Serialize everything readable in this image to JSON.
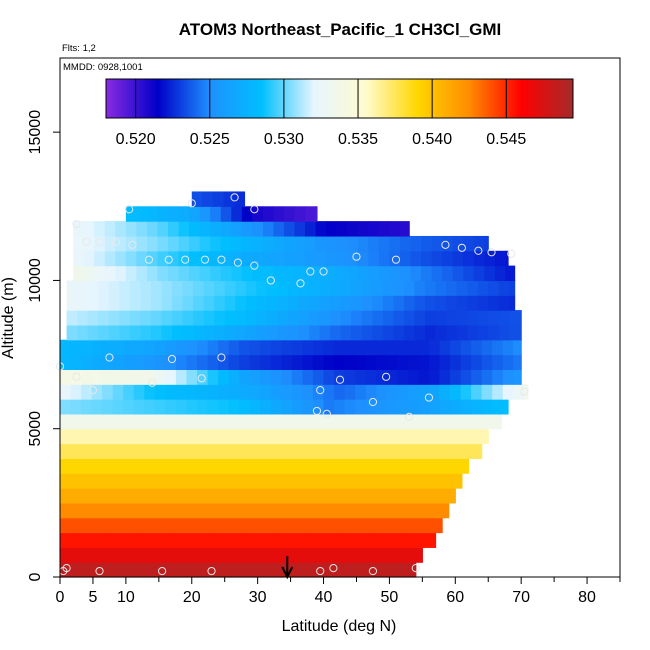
{
  "chart_data": {
    "type": "heatmap",
    "title": "ATOM3 Northeast_Pacific_1 CH3Cl_GMI",
    "subtitle_flts": "Flts: 1,2",
    "subtitle_mmdd": "MMDD: 0928,1001",
    "xlabel": "Latitude (deg N)",
    "ylabel": "Altitude (m)",
    "xlim": [
      0,
      85
    ],
    "ylim": [
      0,
      17500
    ],
    "x_ticks": [
      0,
      5,
      10,
      20,
      30,
      40,
      50,
      60,
      70,
      80
    ],
    "x_tick_labels": [
      "0",
      "5",
      "10",
      "20",
      "30",
      "40",
      "50",
      "60",
      "70",
      "80"
    ],
    "x_minor_ticks": [
      15,
      25,
      35,
      45,
      55,
      65,
      75,
      85
    ],
    "y_ticks": [
      0,
      5000,
      10000,
      15000
    ],
    "y_tick_labels": [
      "0",
      "5000",
      "10000",
      "15000"
    ],
    "colorbar": {
      "min": 0.518,
      "max": 0.5495,
      "ticks": [
        0.52,
        0.525,
        0.53,
        0.535,
        0.54,
        0.545
      ],
      "tick_labels": [
        "0.520",
        "0.525",
        "0.530",
        "0.535",
        "0.540",
        "0.545"
      ],
      "colors": [
        "#8a2be2",
        "#0000c8",
        "#1e90ff",
        "#00bfff",
        "#e6f5ff",
        "#fffbd0",
        "#ffd700",
        "#ff8c00",
        "#ff0000",
        "#a52a2a"
      ]
    },
    "layers": [
      {
        "alt": 250,
        "lat_min": 0,
        "lat_max": 54,
        "values": [
          0.5485,
          0.5485
        ]
      },
      {
        "alt": 750,
        "lat_min": 0,
        "lat_max": 55,
        "values": [
          0.547,
          0.547
        ]
      },
      {
        "alt": 1250,
        "lat_min": 0,
        "lat_max": 57,
        "values": [
          0.5455,
          0.5455
        ]
      },
      {
        "alt": 1750,
        "lat_min": 0,
        "lat_max": 58,
        "values": [
          0.544,
          0.544
        ]
      },
      {
        "alt": 2250,
        "lat_min": 0,
        "lat_max": 59,
        "values": [
          0.5425,
          0.5425
        ]
      },
      {
        "alt": 2750,
        "lat_min": 0,
        "lat_max": 60,
        "values": [
          0.541,
          0.541
        ]
      },
      {
        "alt": 3250,
        "lat_min": 0,
        "lat_max": 61,
        "values": [
          0.54,
          0.54
        ]
      },
      {
        "alt": 3750,
        "lat_min": 0,
        "lat_max": 62,
        "values": [
          0.539,
          0.539
        ]
      },
      {
        "alt": 4250,
        "lat_min": 0,
        "lat_max": 64,
        "values": [
          0.5375,
          0.5375
        ]
      },
      {
        "alt": 4750,
        "lat_min": 0,
        "lat_max": 65,
        "values": [
          0.536,
          0.536
        ]
      },
      {
        "alt": 5250,
        "lat_min": 0,
        "lat_max": 67,
        "values": [
          0.5335,
          0.5335
        ]
      },
      {
        "alt": 5750,
        "lat_min": 0,
        "lat_max": 68,
        "values": [
          0.5305,
          0.5295,
          0.5285,
          0.5245,
          0.526,
          0.5285
        ]
      },
      {
        "alt": 6250,
        "lat_min": 0,
        "lat_max": 71,
        "values": [
          0.5325,
          0.5285,
          0.527,
          0.524,
          0.5265,
          0.5335
        ]
      },
      {
        "alt": 6750,
        "lat_min": 0,
        "lat_max": 70,
        "values": [
          0.534,
          0.5335,
          0.5265,
          0.523,
          0.522,
          0.5255
        ]
      },
      {
        "alt": 7250,
        "lat_min": 0,
        "lat_max": 70,
        "values": [
          0.528,
          0.5255,
          0.523,
          0.5215,
          0.522,
          0.5245
        ]
      },
      {
        "alt": 7750,
        "lat_min": 0,
        "lat_max": 70,
        "values": [
          0.528,
          0.5265,
          0.5235,
          0.5225,
          0.5225,
          0.525
        ]
      },
      {
        "alt": 8250,
        "lat_min": 1,
        "lat_max": 70,
        "values": [
          0.5305,
          0.529,
          0.5265,
          0.524,
          0.5225,
          0.5235
        ]
      },
      {
        "alt": 8750,
        "lat_min": 1,
        "lat_max": 70,
        "values": [
          0.5315,
          0.53,
          0.528,
          0.525,
          0.523,
          0.5235
        ]
      },
      {
        "alt": 9250,
        "lat_min": 1,
        "lat_max": 69,
        "values": [
          0.5325,
          0.531,
          0.5285,
          0.526,
          0.5235,
          0.5225
        ]
      },
      {
        "alt": 9750,
        "lat_min": 1,
        "lat_max": 69,
        "values": [
          0.5325,
          0.531,
          0.529,
          0.527,
          0.5245,
          0.523
        ]
      },
      {
        "alt": 10250,
        "lat_min": 2,
        "lat_max": 69,
        "values": [
          0.5335,
          0.5305,
          0.5285,
          0.527,
          0.5245,
          0.522
        ]
      },
      {
        "alt": 10750,
        "lat_min": 2,
        "lat_max": 68,
        "values": [
          0.5325,
          0.5295,
          0.527,
          0.5255,
          0.5235,
          0.522
        ]
      },
      {
        "alt": 11250,
        "lat_min": 2,
        "lat_max": 65,
        "values": [
          0.5325,
          0.5305,
          0.528,
          0.5255,
          0.524,
          0.523
        ]
      },
      {
        "alt": 11750,
        "lat_min": 2,
        "lat_max": 53,
        "values": [
          0.5325,
          0.53,
          0.526,
          0.5215,
          0.5205
        ]
      },
      {
        "alt": 12250,
        "lat_min": 10,
        "lat_max": 39,
        "values": [
          0.5285,
          0.527,
          0.521,
          0.5195
        ]
      },
      {
        "alt": 12750,
        "lat_min": 20,
        "lat_max": 28,
        "values": [
          0.5235,
          0.5225
        ]
      }
    ],
    "sample_points": [
      {
        "lat": 0.5,
        "alt": 200
      },
      {
        "lat": 1,
        "alt": 300
      },
      {
        "lat": 6,
        "alt": 200
      },
      {
        "lat": 15.5,
        "alt": 200
      },
      {
        "lat": 23,
        "alt": 200
      },
      {
        "lat": 39.5,
        "alt": 200
      },
      {
        "lat": 41.5,
        "alt": 300
      },
      {
        "lat": 47.5,
        "alt": 200
      },
      {
        "lat": 54,
        "alt": 300
      },
      {
        "lat": 0,
        "alt": 7100
      },
      {
        "lat": 2.5,
        "alt": 6750
      },
      {
        "lat": 5,
        "alt": 6300
      },
      {
        "lat": 7.5,
        "alt": 7400
      },
      {
        "lat": 14,
        "alt": 6550
      },
      {
        "lat": 17,
        "alt": 7350
      },
      {
        "lat": 21.5,
        "alt": 6700
      },
      {
        "lat": 24.5,
        "alt": 7400
      },
      {
        "lat": 39.5,
        "alt": 6300
      },
      {
        "lat": 39,
        "alt": 5600
      },
      {
        "lat": 40.5,
        "alt": 5500
      },
      {
        "lat": 42.5,
        "alt": 6650
      },
      {
        "lat": 47.5,
        "alt": 5900
      },
      {
        "lat": 49.5,
        "alt": 6750
      },
      {
        "lat": 53,
        "alt": 5400
      },
      {
        "lat": 56,
        "alt": 6050
      },
      {
        "lat": 70.5,
        "alt": 6250
      },
      {
        "lat": 2.5,
        "alt": 11900
      },
      {
        "lat": 4,
        "alt": 11300
      },
      {
        "lat": 6,
        "alt": 11300
      },
      {
        "lat": 8.5,
        "alt": 11300
      },
      {
        "lat": 11,
        "alt": 11200
      },
      {
        "lat": 10.5,
        "alt": 12400
      },
      {
        "lat": 13.5,
        "alt": 10700
      },
      {
        "lat": 16.5,
        "alt": 10700
      },
      {
        "lat": 19,
        "alt": 10700
      },
      {
        "lat": 20,
        "alt": 12600
      },
      {
        "lat": 22,
        "alt": 10700
      },
      {
        "lat": 24.5,
        "alt": 10700
      },
      {
        "lat": 27,
        "alt": 10600
      },
      {
        "lat": 26.5,
        "alt": 12800
      },
      {
        "lat": 29.5,
        "alt": 10500
      },
      {
        "lat": 29.5,
        "alt": 12400
      },
      {
        "lat": 32,
        "alt": 10000
      },
      {
        "lat": 36.5,
        "alt": 9900
      },
      {
        "lat": 38,
        "alt": 10300
      },
      {
        "lat": 40,
        "alt": 10300
      },
      {
        "lat": 45,
        "alt": 10800
      },
      {
        "lat": 51,
        "alt": 10700
      },
      {
        "lat": 58.5,
        "alt": 11200
      },
      {
        "lat": 61,
        "alt": 11100
      },
      {
        "lat": 63.5,
        "alt": 11000
      },
      {
        "lat": 65.5,
        "alt": 10950
      },
      {
        "lat": 68.5,
        "alt": 10900
      }
    ],
    "arrow_lat": 34.5
  }
}
